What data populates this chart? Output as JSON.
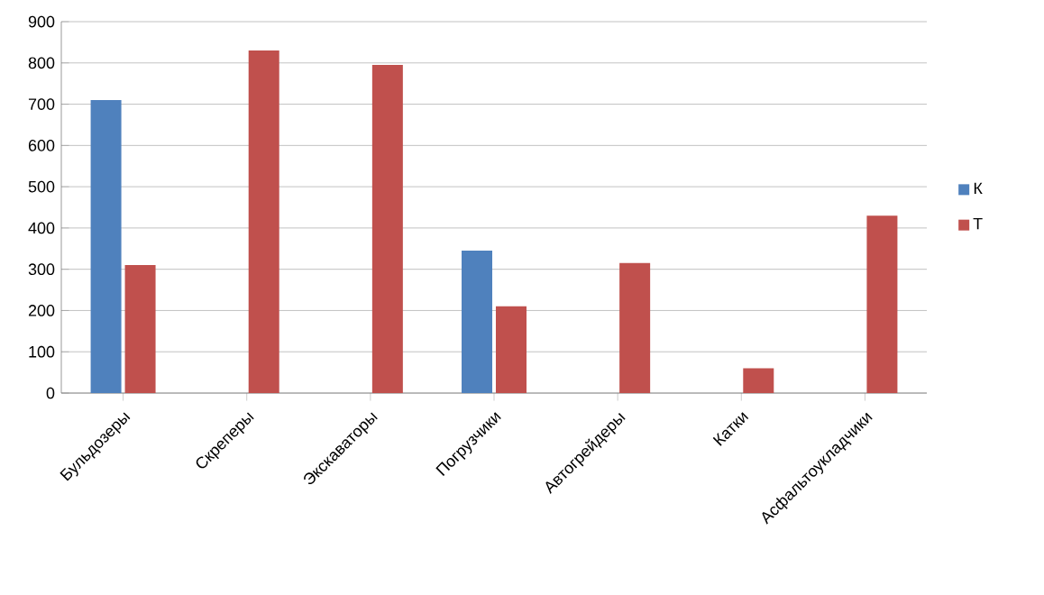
{
  "chart_data": {
    "type": "bar",
    "categories": [
      "Бульдозеры",
      "Скреперы",
      "Экскаваторы",
      "Погрузчики",
      "Автогрейдеры",
      "Катки",
      "Асфальтоукладчики"
    ],
    "series": [
      {
        "name": "К",
        "color": "#4f81bd",
        "values": [
          710,
          null,
          null,
          345,
          null,
          null,
          null
        ]
      },
      {
        "name": "Т",
        "color": "#c0504d",
        "values": [
          310,
          830,
          795,
          210,
          315,
          60,
          430
        ]
      }
    ],
    "ylim": [
      0,
      900
    ],
    "yticks": [
      0,
      100,
      200,
      300,
      400,
      500,
      600,
      700,
      800,
      900
    ],
    "grid": "y",
    "legend": "right"
  }
}
